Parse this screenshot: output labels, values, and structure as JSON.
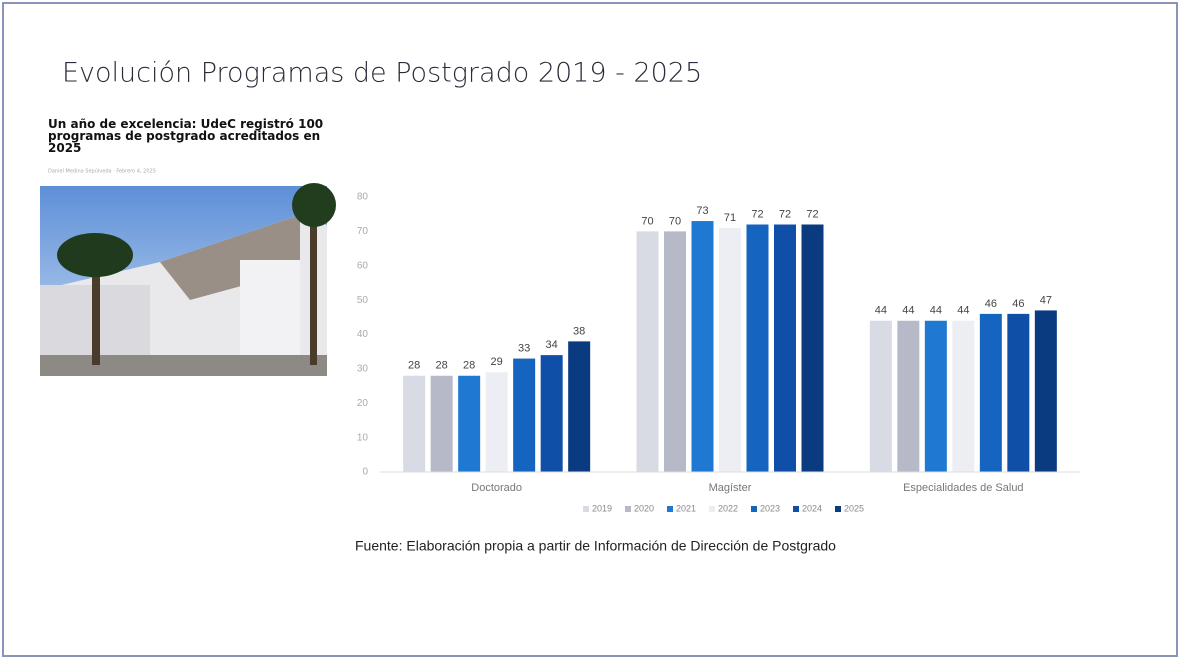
{
  "title": "Evolución Programas de Postgrado 2019 - 2025",
  "news": {
    "headline": "Un año de excelencia: UdeC registró 100 programas de postgrado acreditados en 2025",
    "byline": "Daniel Medina Sepúlveda · Febrero 4, 2025"
  },
  "source": "Fuente: Elaboración propia a partir de Información de Dirección de Postgrado",
  "chart_data": {
    "type": "bar",
    "categories": [
      "Doctorado",
      "Magíster",
      "Especialidades de Salud"
    ],
    "series": [
      {
        "name": "2019",
        "color": "#d8dbe4",
        "values": [
          28,
          70,
          44
        ]
      },
      {
        "name": "2020",
        "color": "#b6bac8",
        "values": [
          28,
          70,
          44
        ]
      },
      {
        "name": "2021",
        "color": "#1f78d1",
        "values": [
          28,
          73,
          44
        ]
      },
      {
        "name": "2022",
        "color": "#eceef4",
        "values": [
          29,
          71,
          44
        ]
      },
      {
        "name": "2023",
        "color": "#1565c0",
        "values": [
          33,
          72,
          46
        ]
      },
      {
        "name": "2024",
        "color": "#0f4fa8",
        "values": [
          34,
          72,
          46
        ]
      },
      {
        "name": "2025",
        "color": "#0a3a80",
        "values": [
          38,
          72,
          47
        ]
      }
    ],
    "ylim": [
      0,
      80
    ],
    "yticks": [
      0,
      10,
      20,
      30,
      40,
      50,
      60,
      70,
      80
    ],
    "grid": false
  }
}
